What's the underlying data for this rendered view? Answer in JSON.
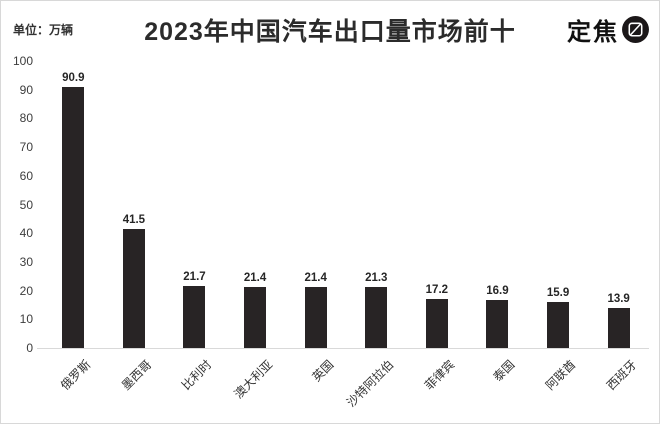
{
  "header": {
    "unit_label": "单位：万辆",
    "title": "2023年中国汽车出口量市场前十",
    "logo_text": "定焦"
  },
  "chart_data": {
    "type": "bar",
    "title": "2023年中国汽车出口量市场前十",
    "unit": "万辆",
    "categories": [
      "俄罗斯",
      "墨西哥",
      "比利时",
      "澳大利亚",
      "英国",
      "沙特阿拉伯",
      "菲律宾",
      "泰国",
      "阿联酋",
      "西班牙"
    ],
    "values": [
      90.9,
      41.5,
      21.7,
      21.4,
      21.4,
      21.3,
      17.2,
      16.9,
      15.9,
      13.9
    ],
    "value_labels": true,
    "ylim": [
      0,
      100
    ],
    "yticks": [
      0,
      10,
      20,
      30,
      40,
      50,
      60,
      70,
      80,
      90,
      100
    ],
    "category_rotation": 45,
    "grid": false,
    "legend": "none",
    "bar_color": "#282425",
    "baseline_color": "#d9d9d9"
  }
}
